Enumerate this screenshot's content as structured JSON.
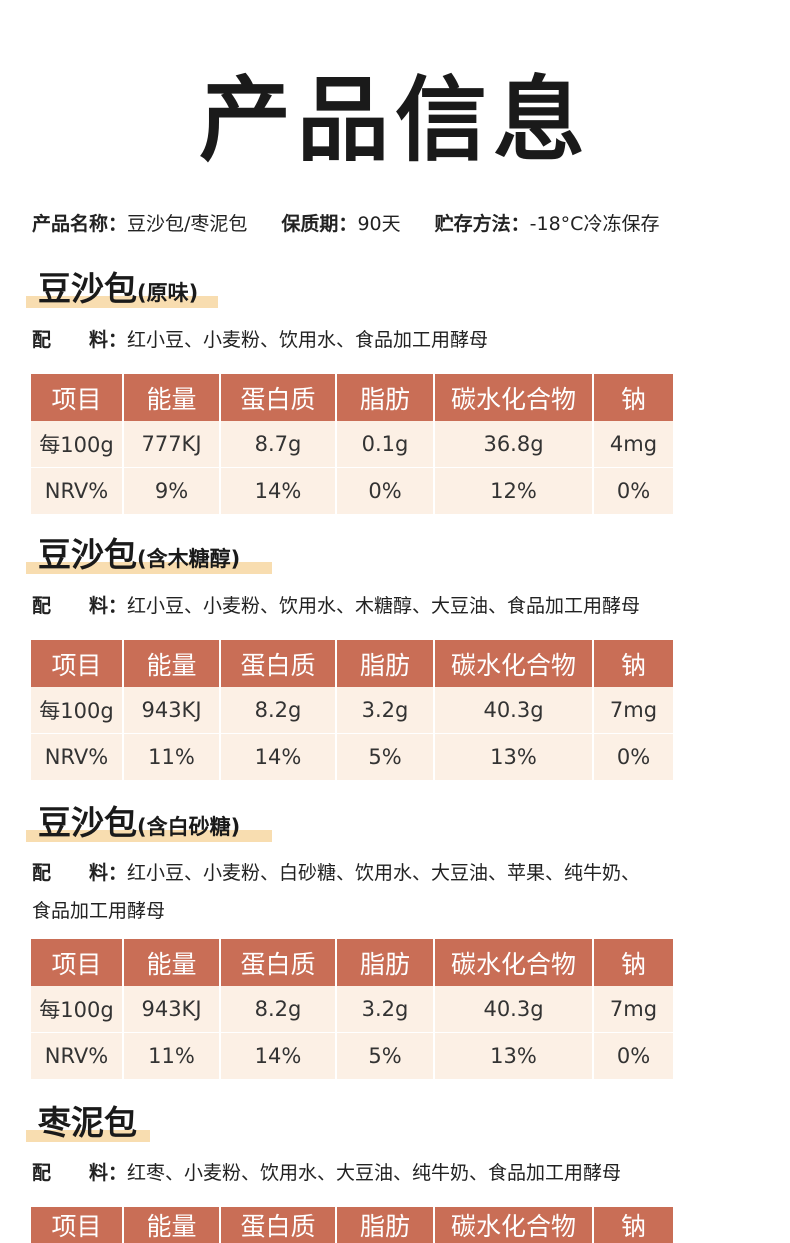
{
  "page_title": "产品信息",
  "info": {
    "name_label": "产品名称：",
    "name_value": "豆沙包/枣泥包",
    "shelf_label": "保质期：",
    "shelf_value": "90天",
    "storage_label": "贮存方法：",
    "storage_value": "-18°C冷冻保存"
  },
  "ingredients_label_a": "配",
  "ingredients_label_b": "料：",
  "table_headers": [
    "项目",
    "能量",
    "蛋白质",
    "脂肪",
    "碳水化合物",
    "钠"
  ],
  "sections": [
    {
      "name": "豆沙包",
      "variant": "(原味)",
      "ingredients": "红小豆、小麦粉、饮用水、食品加工用酵母",
      "rows": [
        [
          "每100g",
          "777KJ",
          "8.7g",
          "0.1g",
          "36.8g",
          "4mg"
        ],
        [
          "NRV%",
          "9%",
          "14%",
          "0%",
          "12%",
          "0%"
        ]
      ]
    },
    {
      "name": "豆沙包",
      "variant": "(含木糖醇)",
      "ingredients": "红小豆、小麦粉、饮用水、木糖醇、大豆油、食品加工用酵母",
      "rows": [
        [
          "每100g",
          "943KJ",
          "8.2g",
          "3.2g",
          "40.3g",
          "7mg"
        ],
        [
          "NRV%",
          "11%",
          "14%",
          "5%",
          "13%",
          "0%"
        ]
      ]
    },
    {
      "name": "豆沙包",
      "variant": "(含白砂糖)",
      "ingredients": "红小豆、小麦粉、白砂糖、饮用水、大豆油、苹果、纯牛奶、",
      "ingredients_line2": "食品加工用酵母",
      "rows": [
        [
          "每100g",
          "943KJ",
          "8.2g",
          "3.2g",
          "40.3g",
          "7mg"
        ],
        [
          "NRV%",
          "11%",
          "14%",
          "5%",
          "13%",
          "0%"
        ]
      ]
    },
    {
      "name": "枣泥包",
      "variant": "",
      "ingredients": "红枣、小麦粉、饮用水、大豆油、纯牛奶、食品加工用酵母"
    }
  ]
}
